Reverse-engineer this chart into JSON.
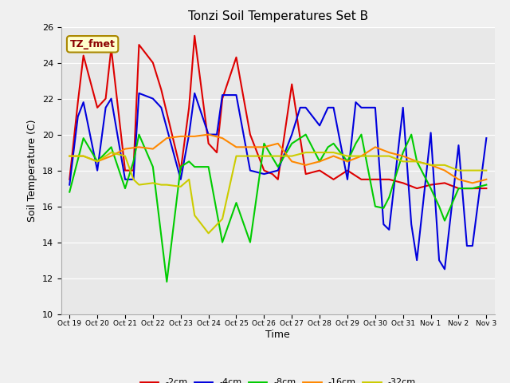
{
  "title": "Tonzi Soil Temperatures Set B",
  "xlabel": "Time",
  "ylabel": "Soil Temperature (C)",
  "ylim": [
    10,
    26
  ],
  "yticks": [
    10,
    12,
    14,
    16,
    18,
    20,
    22,
    24,
    26
  ],
  "annotation": "TZ_fmet",
  "x_labels": [
    "Oct 19",
    "Oct 20",
    "Oct 21",
    "Oct 22",
    "Oct 23",
    "Oct 24",
    "Oct 25",
    "Oct 26",
    "Oct 27",
    "Oct 28",
    "Oct 29",
    "Oct 30",
    "Oct 31",
    "Nov 1",
    "Nov 2",
    "Nov 3"
  ],
  "series": {
    "-2cm": {
      "color": "#dd0000",
      "x": [
        0,
        0.3,
        0.5,
        1.0,
        1.3,
        1.5,
        2.0,
        2.3,
        2.5,
        3.0,
        3.3,
        4.0,
        4.3,
        4.5,
        5.0,
        5.3,
        5.5,
        6.0,
        6.5,
        7.0,
        7.3,
        7.5,
        8.0,
        8.5,
        9.0,
        9.5,
        10.0,
        10.5,
        11.0,
        11.5,
        12.0,
        12.5,
        13.0,
        13.5,
        14.0,
        14.5,
        15.0
      ],
      "y": [
        17.5,
        21.8,
        24.4,
        21.5,
        22.0,
        24.8,
        18.0,
        18.0,
        25.0,
        24.0,
        22.5,
        18.0,
        21.5,
        25.5,
        19.5,
        19.0,
        22.0,
        24.3,
        20.0,
        18.0,
        17.8,
        17.5,
        22.8,
        17.8,
        18.0,
        17.5,
        18.0,
        17.5,
        17.5,
        17.5,
        17.3,
        17.0,
        17.2,
        17.3,
        17.0,
        17.0,
        17.0
      ]
    },
    "-4cm": {
      "color": "#0000dd",
      "x": [
        0,
        0.3,
        0.5,
        1.0,
        1.3,
        1.5,
        2.0,
        2.3,
        2.5,
        3.0,
        3.3,
        4.0,
        4.3,
        4.5,
        5.0,
        5.3,
        5.5,
        6.0,
        6.5,
        7.0,
        7.5,
        8.0,
        8.3,
        8.5,
        9.0,
        9.3,
        9.5,
        10.0,
        10.3,
        10.5,
        11.0,
        11.3,
        11.5,
        12.0,
        12.3,
        12.5,
        13.0,
        13.3,
        13.5,
        14.0,
        14.3,
        14.5,
        15.0
      ],
      "y": [
        17.2,
        21.0,
        21.8,
        18.0,
        21.5,
        22.0,
        17.5,
        17.5,
        22.3,
        22.0,
        21.5,
        17.5,
        20.0,
        22.3,
        20.0,
        20.0,
        22.2,
        22.2,
        18.0,
        17.8,
        18.0,
        20.0,
        21.5,
        21.5,
        20.5,
        21.5,
        21.5,
        17.5,
        21.8,
        21.5,
        21.5,
        15.0,
        14.7,
        21.5,
        15.0,
        13.0,
        20.1,
        13.0,
        12.5,
        19.4,
        13.8,
        13.8,
        19.8
      ]
    },
    "-8cm": {
      "color": "#00cc00",
      "x": [
        0,
        0.5,
        1.0,
        1.5,
        2.0,
        2.3,
        2.5,
        3.0,
        3.5,
        4.0,
        4.3,
        4.5,
        5.0,
        5.5,
        6.0,
        6.5,
        7.0,
        7.5,
        8.0,
        8.5,
        9.0,
        9.3,
        9.5,
        10.0,
        10.3,
        10.5,
        11.0,
        11.3,
        11.5,
        12.0,
        12.3,
        12.5,
        13.0,
        13.3,
        13.5,
        14.0,
        14.5,
        15.0
      ],
      "y": [
        16.8,
        19.8,
        18.5,
        19.3,
        17.0,
        18.5,
        20.0,
        18.2,
        11.8,
        18.2,
        18.5,
        18.2,
        18.2,
        14.0,
        16.2,
        14.0,
        19.5,
        18.2,
        19.5,
        20.0,
        18.5,
        19.3,
        19.5,
        18.5,
        19.5,
        20.0,
        16.0,
        15.9,
        16.5,
        19.0,
        20.0,
        18.5,
        17.0,
        16.0,
        15.2,
        17.0,
        17.0,
        17.2
      ]
    },
    "-16cm": {
      "color": "#ff8800",
      "x": [
        0,
        0.5,
        1.0,
        1.5,
        2.0,
        2.5,
        3.0,
        3.5,
        4.0,
        4.5,
        5.0,
        5.5,
        6.0,
        6.5,
        7.0,
        7.5,
        8.0,
        8.5,
        9.0,
        9.5,
        10.0,
        10.5,
        11.0,
        11.5,
        12.0,
        12.5,
        13.0,
        13.5,
        14.0,
        14.5,
        15.0
      ],
      "y": [
        18.8,
        18.8,
        18.5,
        18.8,
        19.2,
        19.3,
        19.2,
        19.8,
        19.9,
        19.9,
        20.0,
        19.8,
        19.3,
        19.3,
        19.3,
        19.5,
        18.5,
        18.3,
        18.5,
        18.8,
        18.5,
        18.8,
        19.3,
        19.0,
        18.8,
        18.5,
        18.3,
        18.0,
        17.5,
        17.3,
        17.5
      ]
    },
    "-32cm": {
      "color": "#cccc00",
      "x": [
        0,
        0.5,
        1.0,
        1.5,
        2.0,
        2.3,
        2.5,
        3.0,
        3.3,
        3.5,
        4.0,
        4.3,
        4.5,
        5.0,
        5.5,
        6.0,
        6.5,
        7.0,
        7.5,
        8.0,
        8.5,
        9.0,
        9.5,
        10.0,
        10.5,
        11.0,
        11.5,
        12.0,
        12.5,
        13.0,
        13.5,
        14.0,
        14.5,
        15.0
      ],
      "y": [
        18.8,
        18.8,
        18.5,
        19.0,
        18.8,
        17.5,
        17.2,
        17.3,
        17.2,
        17.2,
        17.1,
        17.5,
        15.5,
        14.5,
        15.3,
        18.8,
        18.8,
        18.8,
        18.8,
        18.8,
        19.0,
        19.0,
        19.0,
        18.8,
        18.8,
        18.8,
        18.8,
        18.5,
        18.5,
        18.3,
        18.3,
        18.0,
        18.0,
        18.0
      ]
    }
  }
}
